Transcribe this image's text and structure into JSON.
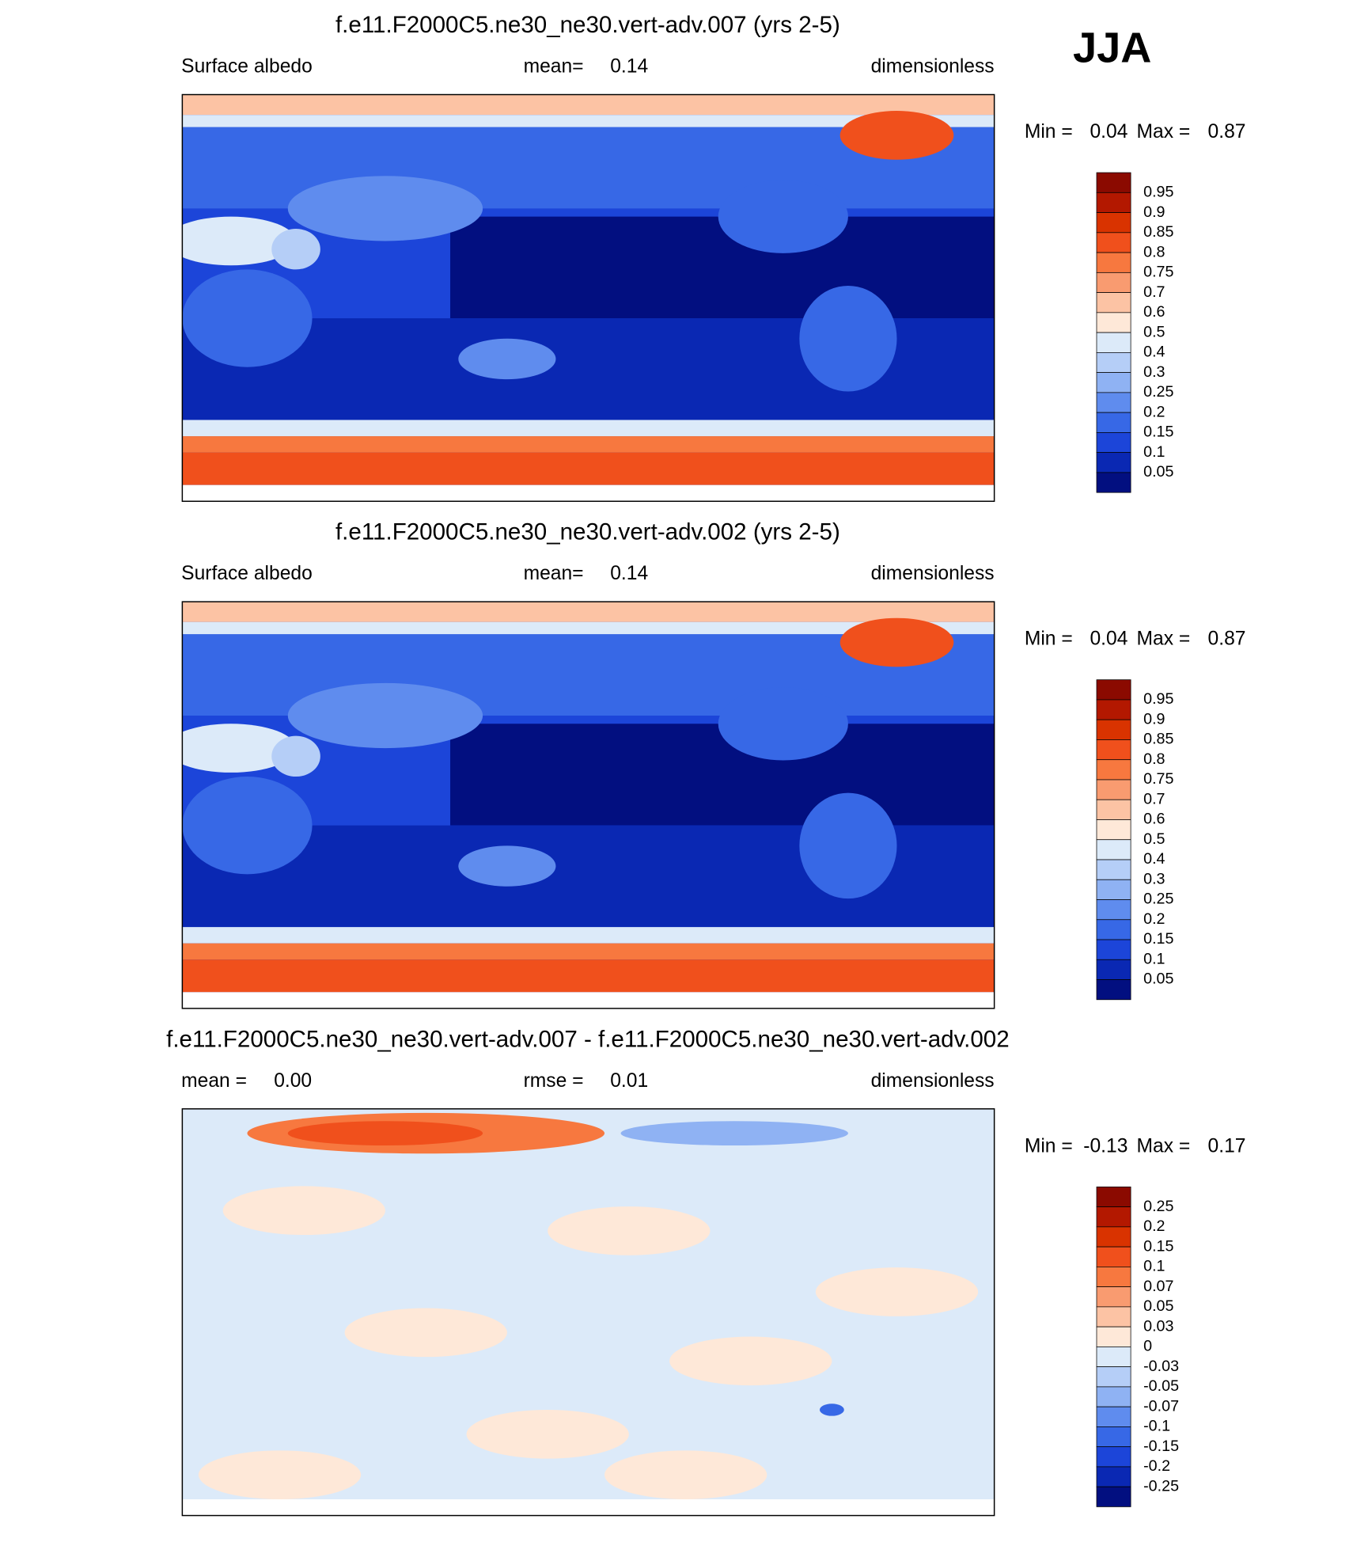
{
  "season": "JJA",
  "panels": [
    {
      "title": "f.e11.F2000C5.ne30_ne30.vert-adv.007 (yrs 2-5)",
      "left_label": "Surface albedo",
      "center_label": "mean=",
      "center_value": "0.14",
      "right_label": "dimensionless",
      "min_label": "Min =",
      "min_value": "0.04",
      "max_label": "Max =",
      "max_value": "0.87",
      "colorbar": {
        "labels": [
          "0.95",
          "0.9",
          "0.85",
          "0.8",
          "0.75",
          "0.7",
          "0.6",
          "0.5",
          "0.4",
          "0.3",
          "0.25",
          "0.2",
          "0.15",
          "0.1",
          "0.05"
        ],
        "colors": [
          "#8b0a00",
          "#b31800",
          "#d93300",
          "#f0501c",
          "#f7783f",
          "#f99b70",
          "#fcc3a4",
          "#fee8d8",
          "#dceaf9",
          "#b5cef7",
          "#8fb2f3",
          "#5f8cee",
          "#3768e6",
          "#1c45d9",
          "#0a28b3",
          "#020f80"
        ]
      }
    },
    {
      "title": "f.e11.F2000C5.ne30_ne30.vert-adv.002 (yrs 2-5)",
      "left_label": "Surface albedo",
      "center_label": "mean=",
      "center_value": "0.14",
      "right_label": "dimensionless",
      "min_label": "Min =",
      "min_value": "0.04",
      "max_label": "Max =",
      "max_value": "0.87",
      "colorbar": {
        "labels": [
          "0.95",
          "0.9",
          "0.85",
          "0.8",
          "0.75",
          "0.7",
          "0.6",
          "0.5",
          "0.4",
          "0.3",
          "0.25",
          "0.2",
          "0.15",
          "0.1",
          "0.05"
        ],
        "colors": [
          "#8b0a00",
          "#b31800",
          "#d93300",
          "#f0501c",
          "#f7783f",
          "#f99b70",
          "#fcc3a4",
          "#fee8d8",
          "#dceaf9",
          "#b5cef7",
          "#8fb2f3",
          "#5f8cee",
          "#3768e6",
          "#1c45d9",
          "#0a28b3",
          "#020f80"
        ]
      }
    },
    {
      "title": "f.e11.F2000C5.ne30_ne30.vert-adv.007 - f.e11.F2000C5.ne30_ne30.vert-adv.002",
      "left_label": "mean =",
      "left_value": "0.00",
      "center_label": "rmse =",
      "center_value": "0.01",
      "right_label": "dimensionless",
      "min_label": "Min =",
      "min_value": "-0.13",
      "max_label": "Max =",
      "max_value": "0.17",
      "colorbar": {
        "labels": [
          "0.25",
          "0.2",
          "0.15",
          "0.1",
          "0.07",
          "0.05",
          "0.03",
          "0",
          "-0.03",
          "-0.05",
          "-0.07",
          "-0.1",
          "-0.15",
          "-0.2",
          "-0.25"
        ],
        "colors": [
          "#8b0a00",
          "#b31800",
          "#d93300",
          "#f0501c",
          "#f7783f",
          "#f99b70",
          "#fcc3a4",
          "#fee8d8",
          "#dceaf9",
          "#b5cef7",
          "#8fb2f3",
          "#5f8cee",
          "#3768e6",
          "#1c45d9",
          "#0a28b3",
          "#020f80"
        ]
      }
    }
  ]
}
